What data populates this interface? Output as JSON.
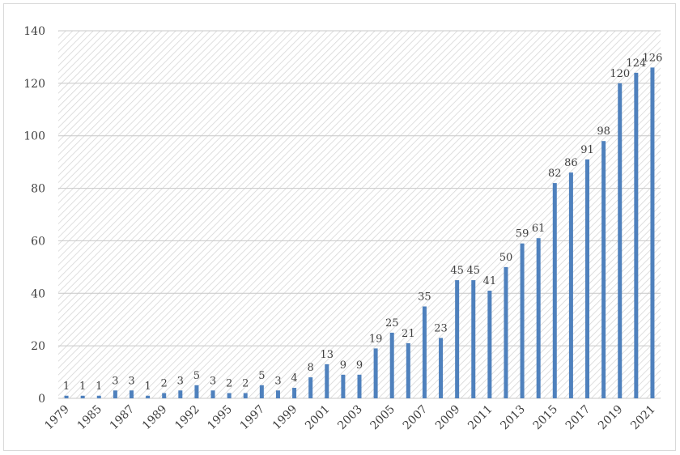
{
  "chart_data": {
    "type": "bar",
    "categories": [
      "1979",
      null,
      "1985",
      null,
      "1987",
      null,
      "1989",
      null,
      "1992",
      null,
      "1995",
      null,
      "1997",
      null,
      "1999",
      null,
      "2001",
      null,
      "2003",
      null,
      "2005",
      null,
      "2007",
      null,
      "2009",
      null,
      "2011",
      null,
      "2013",
      null,
      "2015",
      null,
      "2017",
      null,
      "2019",
      null,
      "2021"
    ],
    "values": [
      1,
      1,
      1,
      3,
      3,
      1,
      2,
      3,
      5,
      3,
      2,
      2,
      5,
      3,
      4,
      8,
      13,
      9,
      9,
      19,
      25,
      21,
      35,
      23,
      45,
      45,
      41,
      50,
      59,
      61,
      82,
      86,
      91,
      98,
      120,
      124,
      126
    ],
    "color": "#4f81bd",
    "ylim": [
      0,
      140
    ],
    "yticks": [
      0,
      20,
      40,
      60,
      80,
      100,
      120,
      140
    ],
    "grid": true
  }
}
